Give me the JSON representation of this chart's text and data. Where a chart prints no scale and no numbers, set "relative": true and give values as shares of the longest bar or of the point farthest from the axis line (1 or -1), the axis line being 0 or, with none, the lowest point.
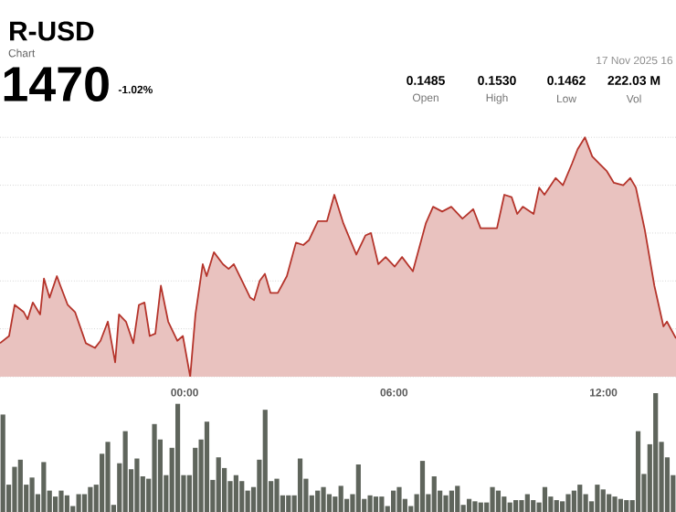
{
  "chart_data": [
    {
      "type": "area",
      "title": "R-USD",
      "subtitle": "Chart",
      "annotations": [
        "1470",
        "-1.02%",
        "0.1485",
        "Open",
        "0.1530",
        "High",
        "0.1462",
        "Low",
        "222.03 M",
        "Vol",
        "17 Nov 2025 16"
      ],
      "relative": true,
      "color": "#b5342b",
      "grid": "y",
      "xlim": [
        -5.29,
        14.08
      ],
      "xticks": [
        {
          "value": 0,
          "label": "00:00"
        },
        {
          "value": 6,
          "label": "06:00"
        },
        {
          "value": 12,
          "label": "12:00"
        }
      ],
      "x": [
        -5.29,
        -5.03,
        -4.87,
        -4.61,
        -4.5,
        -4.35,
        -4.14,
        -4.03,
        -3.87,
        -3.66,
        -3.56,
        -3.35,
        -3.14,
        -2.83,
        -2.57,
        -2.41,
        -2.2,
        -1.99,
        -1.88,
        -1.68,
        -1.47,
        -1.31,
        -1.15,
        -1.0,
        -0.84,
        -0.68,
        -0.47,
        -0.21,
        -0.05,
        0.16,
        0.31,
        0.52,
        0.63,
        0.84,
        1.1,
        1.26,
        1.41,
        1.68,
        1.88,
        1.99,
        2.15,
        2.3,
        2.46,
        2.67,
        2.93,
        3.19,
        3.4,
        3.56,
        3.82,
        4.08,
        4.29,
        4.55,
        4.92,
        5.18,
        5.34,
        5.55,
        5.76,
        6.02,
        6.23,
        6.54,
        6.91,
        7.12,
        7.38,
        7.64,
        7.96,
        8.27,
        8.48,
        8.95,
        9.16,
        9.37,
        9.53,
        9.69,
        10.0,
        10.16,
        10.31,
        10.63,
        10.84,
        11.1,
        11.26,
        11.47,
        11.68,
        11.88,
        12.09,
        12.3,
        12.57,
        12.77,
        12.93,
        13.19,
        13.46,
        13.72,
        13.82,
        14.08
      ],
      "values": [
        0.14,
        0.17,
        0.3,
        0.27,
        0.24,
        0.31,
        0.26,
        0.41,
        0.33,
        0.42,
        0.38,
        0.3,
        0.27,
        0.14,
        0.12,
        0.15,
        0.23,
        0.06,
        0.26,
        0.23,
        0.14,
        0.3,
        0.31,
        0.17,
        0.18,
        0.38,
        0.23,
        0.15,
        0.17,
        0,
        0.26,
        0.47,
        0.42,
        0.52,
        0.47,
        0.45,
        0.47,
        0.39,
        0.33,
        0.32,
        0.4,
        0.43,
        0.35,
        0.35,
        0.42,
        0.56,
        0.55,
        0.57,
        0.65,
        0.65,
        0.76,
        0.64,
        0.51,
        0.59,
        0.6,
        0.47,
        0.5,
        0.46,
        0.5,
        0.44,
        0.64,
        0.71,
        0.69,
        0.71,
        0.66,
        0.7,
        0.62,
        0.62,
        0.76,
        0.75,
        0.68,
        0.71,
        0.68,
        0.79,
        0.76,
        0.83,
        0.8,
        0.89,
        0.95,
        1,
        0.92,
        0.89,
        0.86,
        0.81,
        0.8,
        0.83,
        0.79,
        0.61,
        0.38,
        0.21,
        0.23,
        0.16
      ]
    },
    {
      "type": "bar",
      "relative": true,
      "color": "#5f655c",
      "categories": [
        null,
        null,
        null,
        null,
        null,
        null,
        null,
        null,
        null,
        null,
        null,
        null,
        null,
        null,
        null,
        null,
        null,
        null,
        null,
        null,
        null,
        null,
        null,
        null,
        null,
        null,
        null,
        null,
        null,
        null,
        null,
        null,
        null,
        null,
        null,
        null,
        null,
        null,
        null,
        null,
        null,
        null,
        null,
        null,
        null,
        null,
        null,
        null,
        null,
        null,
        null,
        null,
        null,
        null,
        null,
        null,
        null,
        null,
        null,
        null,
        null,
        null,
        null,
        null,
        null,
        null,
        null,
        null,
        null,
        null,
        null,
        null,
        null,
        null,
        null,
        null,
        null,
        null,
        null,
        null,
        null,
        null,
        null,
        null,
        null,
        null,
        null,
        null,
        null,
        null,
        null,
        null,
        null,
        null,
        null,
        null,
        null,
        null,
        null,
        null,
        null,
        null,
        null,
        null,
        null,
        null,
        null,
        null,
        null,
        null,
        null,
        null,
        null,
        null,
        null,
        null
      ],
      "values": [
        0.82,
        0.23,
        0.38,
        0.44,
        0.23,
        0.29,
        0.15,
        0.42,
        0.18,
        0.13,
        0.18,
        0.14,
        0.05,
        0.15,
        0.15,
        0.21,
        0.23,
        0.49,
        0.59,
        0.06,
        0.41,
        0.68,
        0.36,
        0.45,
        0.3,
        0.28,
        0.74,
        0.61,
        0.31,
        0.54,
        0.91,
        0.31,
        0.31,
        0.54,
        0.61,
        0.76,
        0.27,
        0.46,
        0.37,
        0.26,
        0.31,
        0.26,
        0.18,
        0.21,
        0.44,
        0.86,
        0.26,
        0.28,
        0.14,
        0.14,
        0.14,
        0.45,
        0.28,
        0.14,
        0.18,
        0.21,
        0.15,
        0.13,
        0.22,
        0.11,
        0.15,
        0.4,
        0.11,
        0.14,
        0.13,
        0.13,
        0.05,
        0.18,
        0.21,
        0.11,
        0.05,
        0.15,
        0.43,
        0.15,
        0.3,
        0.18,
        0.14,
        0.18,
        0.22,
        0.06,
        0.11,
        0.09,
        0.08,
        0.08,
        0.21,
        0.18,
        0.13,
        0.08,
        0.1,
        0.1,
        0.15,
        0.1,
        0.08,
        0.21,
        0.13,
        0.1,
        0.09,
        0.15,
        0.18,
        0.23,
        0.15,
        0.09,
        0.23,
        0.19,
        0.15,
        0.13,
        0.11,
        0.1,
        0.1,
        0.68,
        0.32,
        0.57,
        1,
        0.59,
        0.46,
        0.31
      ]
    }
  ]
}
